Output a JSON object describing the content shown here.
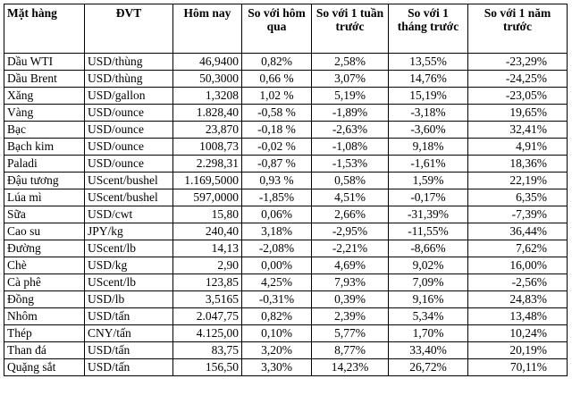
{
  "headers": [
    "Mặt hàng",
    "ĐVT",
    "Hôm nay",
    "So với hôm qua",
    "So với 1 tuần trước",
    "So với 1 tháng trước",
    "So với 1 năm trước"
  ],
  "rows": [
    [
      "Dầu WTI",
      "USD/thùng",
      "46,9400",
      "0,82%",
      "2,58%",
      "13,55%",
      "-23,29%"
    ],
    [
      "Dầu Brent",
      "USD/thùng",
      "50,3000",
      "0,66 %",
      "3,07%",
      "14,76%",
      "-24,25%"
    ],
    [
      "Xăng",
      "USD/gallon",
      "1,3208",
      "1,02 %",
      "5,19%",
      "15,19%",
      "-23,05%"
    ],
    [
      "Vàng",
      "USD/ounce",
      "1.828,40",
      "-0,58 %",
      "-1,89%",
      "-3,18%",
      "19,65%"
    ],
    [
      "Bạc",
      "USD/ounce",
      "23,870",
      "-0,18 %",
      "-2,63%",
      "-3,60%",
      "32,41%"
    ],
    [
      "Bạch kim",
      "USD/ounce",
      "1008,73",
      "-0,02 %",
      "-1,08%",
      "9,18%",
      "4,91%"
    ],
    [
      "Paladi",
      "USD/ounce",
      "2.298,31",
      "-0,87 %",
      "-1,53%",
      "-1,61%",
      "18,36%"
    ],
    [
      "Đậu tương",
      "UScent/bushel",
      "1.169,5000",
      "0,93 %",
      "0,58%",
      "1,59%",
      "22,19%"
    ],
    [
      "Lúa mì",
      "UScent/bushel",
      "597,0000",
      "-1,85%",
      "4,51%",
      "-0,17%",
      "6,35%"
    ],
    [
      "Sữa",
      "USD/cwt",
      "15,80",
      "0,06%",
      "2,66%",
      "-31,39%",
      "-7,39%"
    ],
    [
      "Cao su",
      "JPY/kg",
      "240,40",
      "3,18%",
      "-2,95%",
      "-11,55%",
      "36,44%"
    ],
    [
      "Đường",
      "UScent/lb",
      "14,13",
      "-2,08%",
      "-2,21%",
      "-8,66%",
      "7,62%"
    ],
    [
      "Chè",
      "USD/kg",
      "2,90",
      "0,00%",
      "4,69%",
      "9,02%",
      "16,00%"
    ],
    [
      "Cà phê",
      "UScent/lb",
      "123,85",
      "4,25%",
      "7,93%",
      "7,09%",
      "-2,56%"
    ],
    [
      "Đồng",
      "USD/lb",
      "3,5165",
      "-0,31%",
      "0,39%",
      "9,16%",
      "24,83%"
    ],
    [
      "Nhôm",
      "USD/tấn",
      "2.047,75",
      "0,82%",
      "2,39%",
      "5,34%",
      "13,48%"
    ],
    [
      "Thép",
      "CNY/tấn",
      "4.125,00",
      "0,10%",
      "5,77%",
      "1,70%",
      "10,24%"
    ],
    [
      "Than đá",
      "USD/tấn",
      "83,75",
      "3,20%",
      "8,77%",
      "33,40%",
      "20,19%"
    ],
    [
      "Quặng sắt",
      "USD/tấn",
      "156,50",
      "3,30%",
      "14,23%",
      "26,72%",
      "70,11%"
    ]
  ]
}
